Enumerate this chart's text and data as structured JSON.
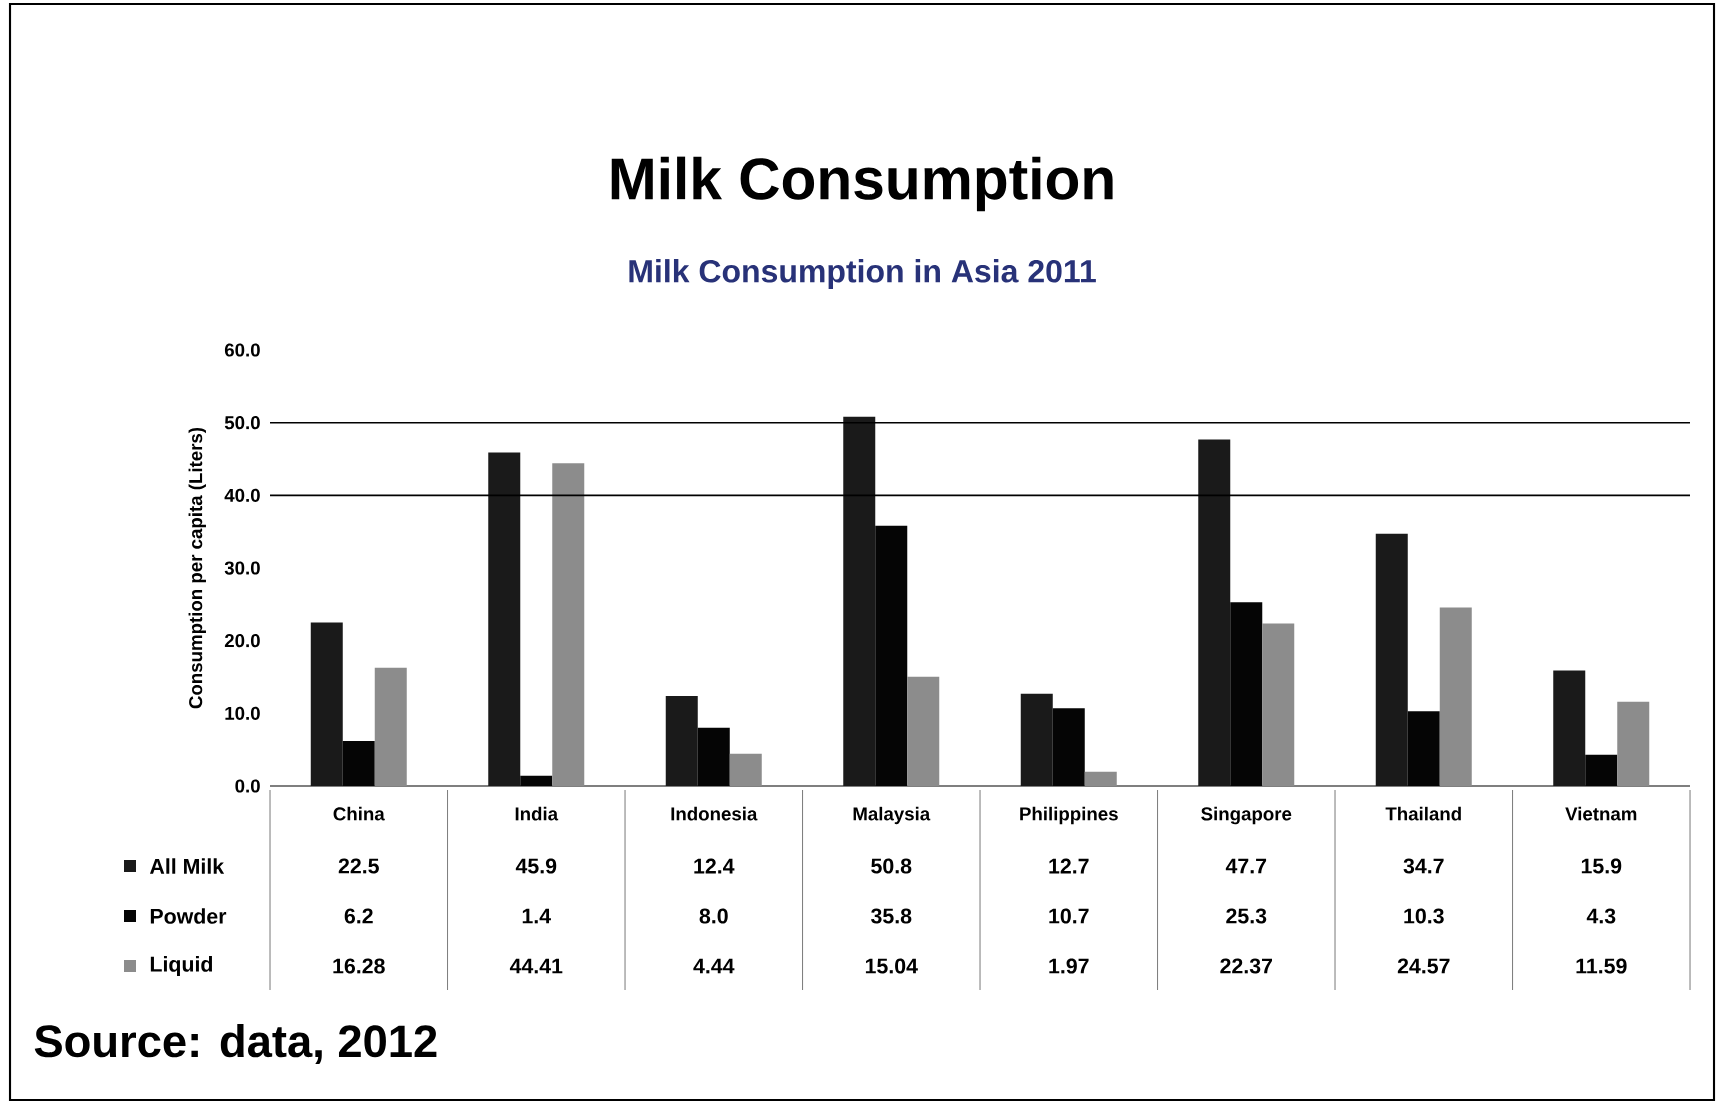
{
  "chart_data": {
    "type": "bar",
    "title": "Milk Consumption",
    "subtitle": "Milk Consumption in Asia 2011",
    "ylabel": "Consumption per capita (Liters)",
    "categories": [
      "China",
      "India",
      "Indonesia",
      "Malaysia",
      "Philippines",
      "Singapore",
      "Thailand",
      "Vietnam"
    ],
    "series": [
      {
        "name": "All Milk",
        "color": "#1a1a1a",
        "values": [
          22.5,
          45.9,
          12.4,
          50.8,
          12.7,
          47.7,
          34.7,
          15.9
        ],
        "value_labels": [
          "22.5",
          "45.9",
          "12.4",
          "50.8",
          "12.7",
          "47.7",
          "34.7",
          "15.9"
        ]
      },
      {
        "name": "Powder",
        "color": "#050505",
        "values": [
          6.2,
          1.4,
          8.0,
          35.8,
          10.7,
          25.3,
          10.3,
          4.3
        ],
        "value_labels": [
          "6.2",
          "1.4",
          "8.0",
          "35.8",
          "10.7",
          "25.3",
          "10.3",
          "4.3"
        ]
      },
      {
        "name": "Liquid",
        "color": "#8c8c8c",
        "values": [
          16.28,
          44.41,
          4.44,
          15.04,
          1.97,
          22.37,
          24.57,
          11.59
        ],
        "value_labels": [
          "16.28",
          "44.41",
          "4.44",
          "15.04",
          "1.97",
          "22.37",
          "24.57",
          "11.59"
        ]
      }
    ],
    "ylim": [
      0,
      60
    ],
    "yticks": [
      {
        "value": 0,
        "label": "0.0"
      },
      {
        "value": 10,
        "label": "10.0"
      },
      {
        "value": 20,
        "label": "20.0"
      },
      {
        "value": 30,
        "label": "30.0"
      },
      {
        "value": 40,
        "label": "40.0"
      },
      {
        "value": 50,
        "label": "50.0"
      },
      {
        "value": 60,
        "label": "60.0"
      }
    ],
    "ref_lines": [
      {
        "axis": "y",
        "value": 40,
        "color": "#000000"
      },
      {
        "axis": "y",
        "value": 50,
        "color": "#000000"
      }
    ],
    "grid": false,
    "legend": "bottom",
    "annotations": [
      "Source: data, 2012"
    ]
  }
}
